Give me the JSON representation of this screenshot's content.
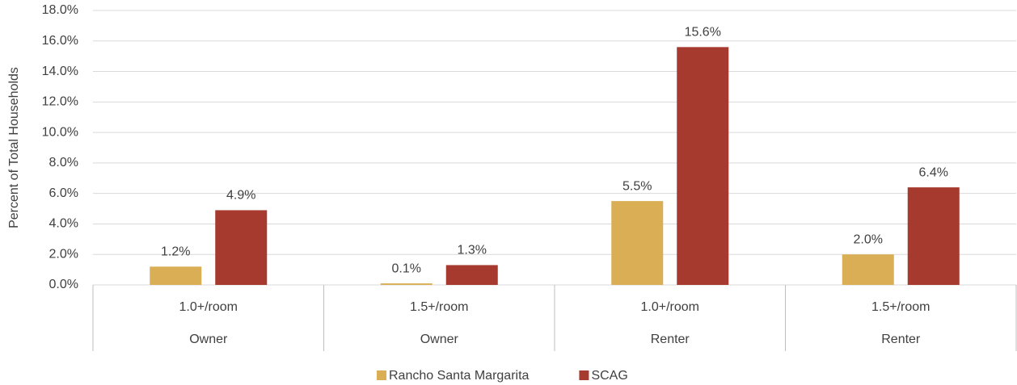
{
  "chart_data": {
    "type": "bar",
    "y_axis_label": "Percent of Total Households",
    "categories": [
      "1.0+/room",
      "1.5+/room",
      "1.0+/room",
      "1.5+/room"
    ],
    "category_groups": [
      "Owner",
      "Owner",
      "Renter",
      "Renter"
    ],
    "series": [
      {
        "name": "Rancho Santa Margarita",
        "color": "#d9ae55",
        "values": [
          1.2,
          0.1,
          5.5,
          2.0
        ],
        "value_labels": [
          "1.2%",
          "0.1%",
          "5.5%",
          "2.0%"
        ]
      },
      {
        "name": "SCAG",
        "color": "#a63a2f",
        "values": [
          4.9,
          1.3,
          15.6,
          6.4
        ],
        "value_labels": [
          "4.9%",
          "1.3%",
          "15.6%",
          "6.4%"
        ]
      }
    ],
    "ylim": [
      0,
      18
    ],
    "yticks": [
      {
        "value": 0,
        "label": "0.0%"
      },
      {
        "value": 2,
        "label": "2.0%"
      },
      {
        "value": 4,
        "label": "4.0%"
      },
      {
        "value": 6,
        "label": "6.0%"
      },
      {
        "value": 8,
        "label": "8.0%"
      },
      {
        "value": 10,
        "label": "10.0%"
      },
      {
        "value": 12,
        "label": "12.0%"
      },
      {
        "value": 14,
        "label": "14.0%"
      },
      {
        "value": 16,
        "label": "16.0%"
      },
      {
        "value": 18,
        "label": "18.0%"
      }
    ],
    "grid": true,
    "legend": "bottom"
  }
}
